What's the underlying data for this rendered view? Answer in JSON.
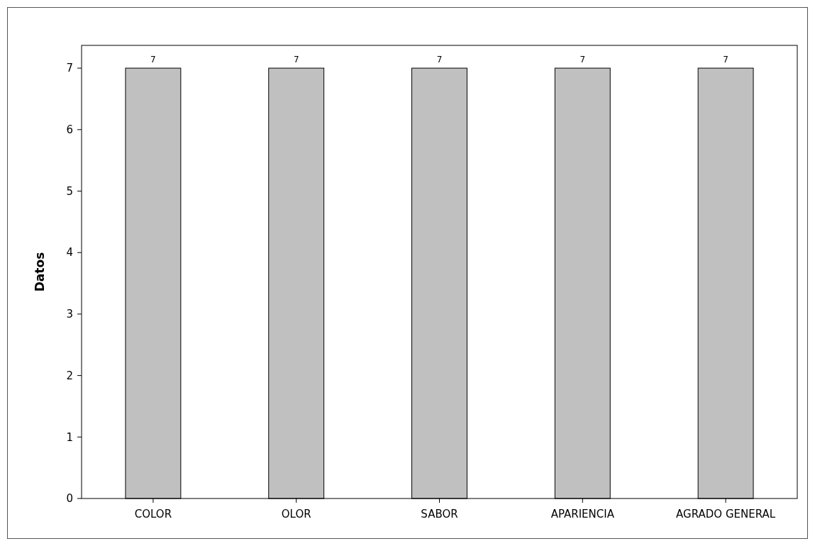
{
  "chart_data": {
    "type": "bar",
    "ylabel": "Datos",
    "categories": [
      "COLOR",
      "OLOR",
      "SABOR",
      "APARIENCIA",
      "AGRADO GENERAL"
    ],
    "values": [
      7,
      7,
      7,
      7,
      7
    ],
    "color": "#c0c0c0",
    "ylim": [
      0,
      7.37
    ],
    "yticks": [
      0,
      1,
      2,
      3,
      4,
      5,
      6,
      7
    ],
    "grid": false,
    "data_labels": true
  }
}
